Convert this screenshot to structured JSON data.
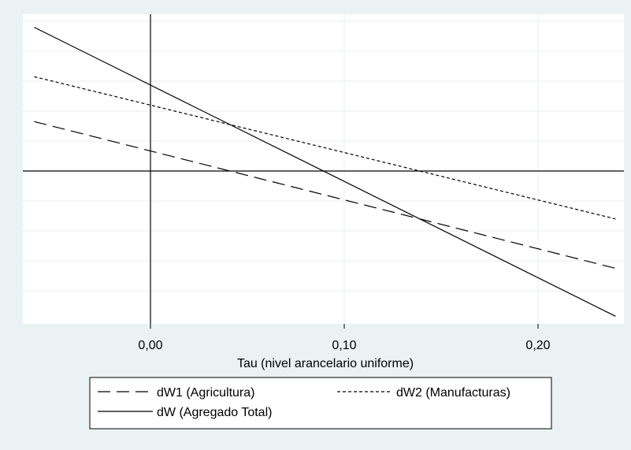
{
  "chart_data": {
    "type": "line",
    "title": "",
    "xlabel": "Tau (nivel arancelario uniforme)",
    "ylabel": "",
    "xlim": [
      -0.06,
      0.24
    ],
    "ylim": [
      -0.94,
      1.0
    ],
    "x_ticks": [
      0.0,
      0.1,
      0.2
    ],
    "x_tick_labels": [
      "0,00",
      "0,10",
      "0,20"
    ],
    "y_gridlines": [
      -0.8,
      -0.6,
      -0.4,
      -0.2,
      0.2,
      0.4,
      0.6,
      0.8,
      1.0
    ],
    "reference_lines": {
      "x": 0.0,
      "y": 0.0
    },
    "grid": true,
    "legend_position": "bottom",
    "series": [
      {
        "name": "dW1 (Agricultura)",
        "style": "dashed",
        "x": [
          -0.06,
          0.24
        ],
        "y": [
          0.33,
          -0.65
        ]
      },
      {
        "name": "dW2 (Manufacturas)",
        "style": "dotted",
        "x": [
          -0.06,
          0.24
        ],
        "y": [
          0.63,
          -0.32
        ]
      },
      {
        "name": "dW (Agregado Total)",
        "style": "solid",
        "x": [
          -0.06,
          0.24
        ],
        "y": [
          0.96,
          -0.97
        ]
      }
    ]
  }
}
